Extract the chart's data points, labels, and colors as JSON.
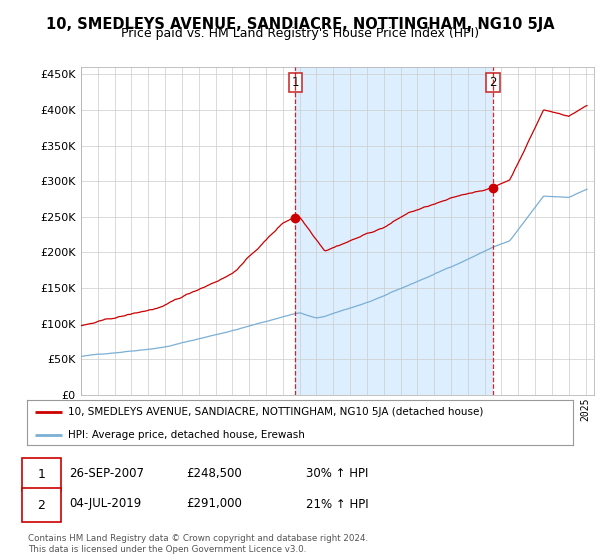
{
  "title": "10, SMEDLEYS AVENUE, SANDIACRE, NOTTINGHAM, NG10 5JA",
  "subtitle": "Price paid vs. HM Land Registry's House Price Index (HPI)",
  "y_values": [
    0,
    50000,
    100000,
    150000,
    200000,
    250000,
    300000,
    350000,
    400000,
    450000
  ],
  "ylim": [
    0,
    460000
  ],
  "xlim": [
    1995,
    2025.5
  ],
  "line1_color": "#cc0000",
  "line2_color": "#7bafd4",
  "shade_color": "#ddeeff",
  "line1_label": "10, SMEDLEYS AVENUE, SANDIACRE, NOTTINGHAM, NG10 5JA (detached house)",
  "line2_label": "HPI: Average price, detached house, Erewash",
  "marker1_x": 2007.74,
  "marker1_y": 248500,
  "marker2_x": 2019.5,
  "marker2_y": 291000,
  "annotation1_date": "26-SEP-2007",
  "annotation1_price": "£248,500",
  "annotation1_hpi": "30% ↑ HPI",
  "annotation2_date": "04-JUL-2019",
  "annotation2_price": "£291,000",
  "annotation2_hpi": "21% ↑ HPI",
  "footer": "Contains HM Land Registry data © Crown copyright and database right 2024.\nThis data is licensed under the Open Government Licence v3.0.",
  "background_color": "#ffffff",
  "grid_color": "#cccccc"
}
